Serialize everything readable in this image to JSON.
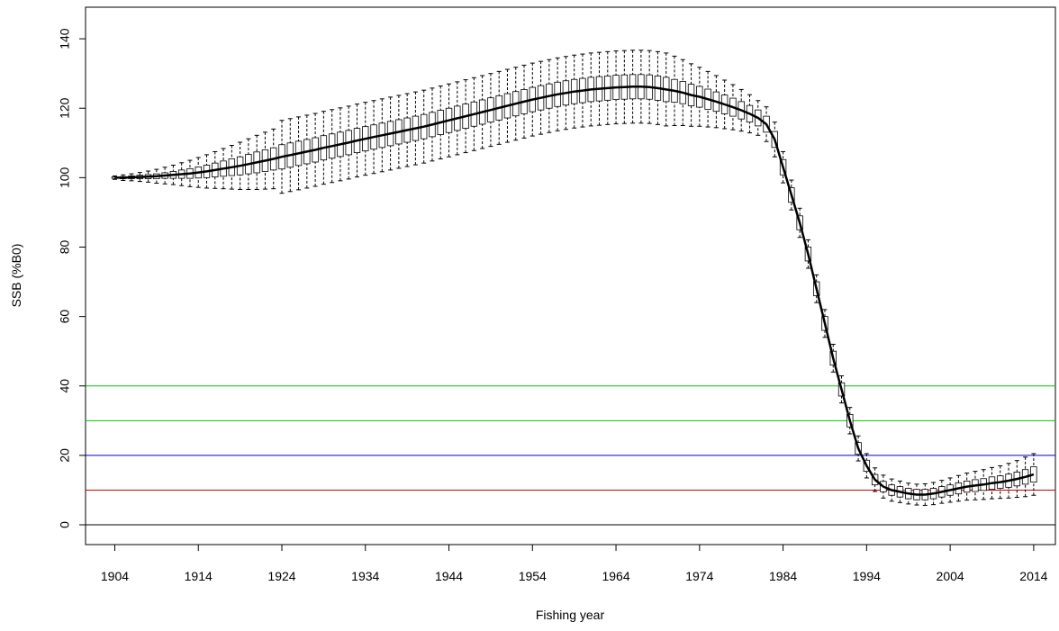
{
  "chart_data": {
    "type": "boxplot",
    "x_label": "Fishing year",
    "y_label": "SSB (%B0)",
    "x": [
      1904,
      1905,
      1906,
      1907,
      1908,
      1909,
      1910,
      1911,
      1912,
      1913,
      1914,
      1915,
      1916,
      1917,
      1918,
      1919,
      1920,
      1921,
      1922,
      1923,
      1924,
      1925,
      1926,
      1927,
      1928,
      1929,
      1930,
      1931,
      1932,
      1933,
      1934,
      1935,
      1936,
      1937,
      1938,
      1939,
      1940,
      1941,
      1942,
      1943,
      1944,
      1945,
      1946,
      1947,
      1948,
      1949,
      1950,
      1951,
      1952,
      1953,
      1954,
      1955,
      1956,
      1957,
      1958,
      1959,
      1960,
      1961,
      1962,
      1963,
      1964,
      1965,
      1966,
      1967,
      1968,
      1969,
      1970,
      1971,
      1972,
      1973,
      1974,
      1975,
      1976,
      1977,
      1978,
      1979,
      1980,
      1981,
      1982,
      1983,
      1984,
      1985,
      1986,
      1987,
      1988,
      1989,
      1990,
      1991,
      1992,
      1993,
      1994,
      1995,
      1996,
      1997,
      1998,
      1999,
      2000,
      2001,
      2002,
      2003,
      2004,
      2005,
      2006,
      2007,
      2008,
      2009,
      2010,
      2011,
      2012,
      2013,
      2014
    ],
    "median": [
      100,
      100,
      100.1,
      100.2,
      100.3,
      100.4,
      100.6,
      100.8,
      101,
      101.2,
      101.5,
      101.8,
      102.2,
      102.6,
      103,
      103.4,
      103.9,
      104.4,
      104.9,
      105.4,
      106,
      106.5,
      107,
      107.5,
      108,
      108.6,
      109.1,
      109.6,
      110.1,
      110.7,
      111.2,
      111.7,
      112.2,
      112.7,
      113.2,
      113.7,
      114.2,
      114.7,
      115.3,
      115.9,
      116.5,
      117.1,
      117.7,
      118.3,
      118.9,
      119.5,
      120.1,
      120.7,
      121.3,
      121.9,
      122.5,
      123,
      123.5,
      124,
      124.4,
      124.8,
      125.1,
      125.4,
      125.6,
      125.8,
      126,
      126.1,
      126.2,
      126.2,
      126.1,
      125.8,
      125.4,
      125,
      124.5,
      123.8,
      123.3,
      122.6,
      121.9,
      121.1,
      120.3,
      119.4,
      118.4,
      117.2,
      115.4,
      111,
      103,
      95,
      87,
      78,
      68,
      58,
      48,
      39,
      30,
      22,
      17,
      13,
      11,
      10,
      9.5,
      9,
      8.7,
      8.7,
      9,
      9.5,
      10,
      10.5,
      11,
      11.3,
      11.6,
      12,
      12.3,
      12.7,
      13.2,
      13.8,
      14.5
    ],
    "q1": [
      99.8,
      99.7,
      99.7,
      99.7,
      99.7,
      99.7,
      99.8,
      99.8,
      99.8,
      99.8,
      99.9,
      100,
      100.2,
      100.4,
      100.6,
      100.8,
      101.1,
      101.4,
      101.8,
      102.2,
      102.5,
      103,
      103.5,
      104,
      104.5,
      105.1,
      105.6,
      106.1,
      106.6,
      107.2,
      107.7,
      108.2,
      108.7,
      109.2,
      109.7,
      110.2,
      110.7,
      111.2,
      111.8,
      112.4,
      113,
      113.6,
      114.2,
      114.8,
      115.4,
      116,
      116.6,
      117.2,
      117.8,
      118.4,
      119,
      119.5,
      120,
      120.5,
      120.9,
      121.3,
      121.6,
      121.9,
      122.1,
      122.3,
      122.5,
      122.6,
      122.7,
      122.7,
      122.6,
      122.3,
      121.9,
      121.7,
      121.3,
      120.7,
      120.3,
      119.7,
      119.1,
      118.4,
      117.7,
      116.9,
      116,
      114.9,
      113.1,
      108.7,
      100.8,
      92.9,
      85,
      76,
      66,
      56,
      46,
      37.1,
      28.2,
      20.3,
      15.4,
      11.5,
      9.5,
      8.5,
      8,
      7.5,
      7.2,
      7.2,
      7.5,
      8,
      8.5,
      8.9,
      9.4,
      9.6,
      9.9,
      10.2,
      10.5,
      10.8,
      11.2,
      11.7,
      12.3
    ],
    "q3": [
      100.2,
      100.3,
      100.5,
      100.7,
      100.9,
      101.1,
      101.4,
      101.8,
      102.2,
      102.6,
      103.1,
      103.6,
      104.2,
      104.8,
      105.4,
      106,
      106.7,
      107.4,
      108,
      108.6,
      109.5,
      110,
      110.5,
      111,
      111.5,
      112.1,
      112.6,
      113.1,
      113.6,
      114.2,
      114.7,
      115.2,
      115.7,
      116.2,
      116.7,
      117.2,
      117.7,
      118.2,
      118.8,
      119.4,
      120,
      120.6,
      121.2,
      121.8,
      122.4,
      123,
      123.6,
      124.2,
      124.8,
      125.4,
      126,
      126.5,
      127,
      127.5,
      127.9,
      128.3,
      128.6,
      128.9,
      129.1,
      129.3,
      129.5,
      129.6,
      129.7,
      129.7,
      129.6,
      129.3,
      128.9,
      128.3,
      127.7,
      126.9,
      126.3,
      125.5,
      124.7,
      123.8,
      122.9,
      121.9,
      120.8,
      119.5,
      117.7,
      113.3,
      105.2,
      97.1,
      89,
      80,
      70,
      60,
      50,
      40.9,
      31.8,
      23.7,
      18.6,
      14.5,
      12.5,
      11.5,
      11,
      10.5,
      10.2,
      10.2,
      10.5,
      11,
      11.5,
      12.1,
      12.6,
      13,
      13.3,
      13.8,
      14.1,
      14.6,
      15.2,
      15.9,
      16.7
    ],
    "lo": [
      99.5,
      99.2,
      99.1,
      98.9,
      98.7,
      98.4,
      98.2,
      98,
      97.7,
      97.4,
      97.2,
      97,
      96.9,
      96.8,
      96.7,
      96.6,
      96.6,
      96.6,
      96.7,
      96.8,
      95.5,
      96,
      96.5,
      97,
      97.5,
      98.1,
      98.6,
      99.1,
      99.6,
      100.2,
      100.7,
      101.2,
      101.7,
      102.2,
      102.7,
      103.2,
      103.7,
      104.2,
      104.8,
      105.4,
      106,
      106.6,
      107.2,
      107.8,
      108.4,
      109,
      109.6,
      110.2,
      110.8,
      111.4,
      112,
      112.5,
      113,
      113.5,
      113.9,
      114.3,
      114.6,
      114.9,
      115.1,
      115.3,
      115.5,
      115.6,
      115.7,
      115.7,
      115.6,
      115.3,
      114.9,
      115,
      115,
      114.8,
      114.8,
      114.6,
      114.4,
      114.1,
      113.8,
      113.4,
      112.9,
      112.2,
      110.4,
      106,
      98.5,
      90.7,
      82.8,
      73.9,
      64,
      54,
      44,
      35.1,
      26.2,
      18.4,
      13.5,
      9.6,
      7.7,
      6.8,
      6.4,
      6,
      5.7,
      5.6,
      5.8,
      6.2,
      6.5,
      6.8,
      7.1,
      7.2,
      7.3,
      7.5,
      7.6,
      7.7,
      7.9,
      8.1,
      8.5
    ],
    "hi": [
      100.5,
      100.8,
      101.1,
      101.5,
      101.9,
      102.4,
      103,
      103.6,
      104.3,
      105,
      105.8,
      106.6,
      107.5,
      108.4,
      109.3,
      110.2,
      111.2,
      112.2,
      113.1,
      114,
      116.5,
      117,
      117.5,
      118,
      118.5,
      119.1,
      119.6,
      120.1,
      120.6,
      121.2,
      121.7,
      122.2,
      122.7,
      123.2,
      123.7,
      124.2,
      124.7,
      125.2,
      125.8,
      126.4,
      127,
      127.6,
      128.2,
      128.8,
      129.4,
      130,
      130.6,
      131.2,
      131.8,
      132.4,
      133,
      133.5,
      134,
      134.5,
      134.9,
      135.3,
      135.6,
      135.9,
      136.1,
      136.3,
      136.5,
      136.6,
      136.7,
      136.7,
      136.6,
      136.3,
      135.9,
      135,
      134,
      132.8,
      131.8,
      130.6,
      129.4,
      128.1,
      126.8,
      125.4,
      123.9,
      122.2,
      120.4,
      116,
      107.5,
      99.3,
      91.2,
      82.1,
      72,
      62,
      52,
      42.9,
      33.8,
      25.6,
      20.5,
      16.4,
      14.3,
      13.2,
      12.6,
      12,
      11.7,
      11.8,
      12.2,
      12.8,
      13.5,
      14.2,
      14.9,
      15.4,
      15.9,
      16.5,
      17,
      17.7,
      18.5,
      19.5,
      20.5
    ],
    "hlines": [
      {
        "value": 40,
        "color": "#00cc00"
      },
      {
        "value": 30,
        "color": "#00cc00"
      },
      {
        "value": 20,
        "color": "#0000cc"
      },
      {
        "value": 10,
        "color": "#cc0000"
      },
      {
        "value": 0,
        "color": "#000000"
      }
    ],
    "xlim": [
      1900.5,
      2016.6
    ],
    "ylim": [
      -5.7,
      149.1
    ],
    "xticks": [
      1904,
      1914,
      1924,
      1934,
      1944,
      1954,
      1964,
      1974,
      1984,
      1994,
      2004,
      2014
    ],
    "yticks": [
      0,
      20,
      40,
      60,
      80,
      100,
      120,
      140
    ]
  }
}
